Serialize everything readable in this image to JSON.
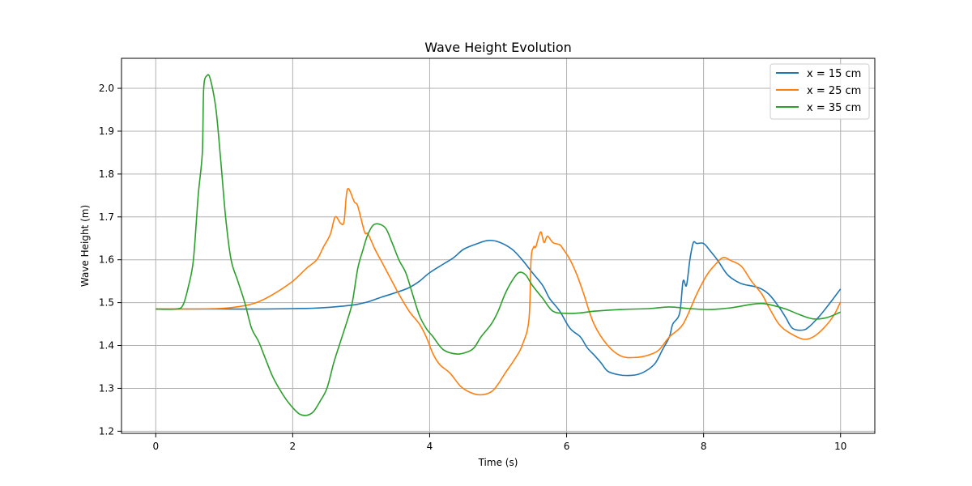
{
  "chart_data": {
    "type": "line",
    "title": "Wave Height Evolution",
    "xlabel": "Time (s)",
    "ylabel": "Wave Height (m)",
    "xlim": [
      -0.5,
      10.5
    ],
    "ylim": [
      1.195,
      2.07
    ],
    "xticks": [
      0,
      2,
      4,
      6,
      8,
      10
    ],
    "yticks": [
      1.2,
      1.3,
      1.4,
      1.5,
      1.6,
      1.7,
      1.8,
      1.9,
      2.0
    ],
    "xtick_labels": [
      "0",
      "2",
      "4",
      "6",
      "8",
      "10"
    ],
    "ytick_labels": [
      "1.2",
      "1.3",
      "1.4",
      "1.5",
      "1.6",
      "1.7",
      "1.8",
      "1.9",
      "2.0"
    ],
    "grid": true,
    "legend_position": "top-right",
    "series": [
      {
        "name": "x = 15 cm",
        "color": "#1f77b4",
        "points": [
          [
            0,
            1.485
          ],
          [
            0.5,
            1.485
          ],
          [
            1,
            1.485
          ],
          [
            1.5,
            1.485
          ],
          [
            2,
            1.486
          ],
          [
            2.3,
            1.487
          ],
          [
            2.6,
            1.49
          ],
          [
            2.9,
            1.495
          ],
          [
            3.1,
            1.502
          ],
          [
            3.3,
            1.513
          ],
          [
            3.5,
            1.523
          ],
          [
            3.7,
            1.535
          ],
          [
            3.85,
            1.55
          ],
          [
            4.0,
            1.57
          ],
          [
            4.2,
            1.59
          ],
          [
            4.35,
            1.605
          ],
          [
            4.5,
            1.625
          ],
          [
            4.7,
            1.638
          ],
          [
            4.85,
            1.645
          ],
          [
            5.0,
            1.642
          ],
          [
            5.2,
            1.625
          ],
          [
            5.35,
            1.6
          ],
          [
            5.5,
            1.57
          ],
          [
            5.65,
            1.54
          ],
          [
            5.75,
            1.51
          ],
          [
            5.9,
            1.48
          ],
          [
            6.05,
            1.44
          ],
          [
            6.2,
            1.42
          ],
          [
            6.3,
            1.395
          ],
          [
            6.4,
            1.378
          ],
          [
            6.5,
            1.36
          ],
          [
            6.6,
            1.34
          ],
          [
            6.75,
            1.332
          ],
          [
            6.9,
            1.33
          ],
          [
            7.05,
            1.333
          ],
          [
            7.2,
            1.345
          ],
          [
            7.3,
            1.36
          ],
          [
            7.4,
            1.39
          ],
          [
            7.5,
            1.42
          ],
          [
            7.55,
            1.45
          ],
          [
            7.65,
            1.475
          ],
          [
            7.7,
            1.55
          ],
          [
            7.75,
            1.54
          ],
          [
            7.8,
            1.6
          ],
          [
            7.85,
            1.64
          ],
          [
            7.9,
            1.638
          ],
          [
            8.0,
            1.638
          ],
          [
            8.1,
            1.62
          ],
          [
            8.2,
            1.6
          ],
          [
            8.35,
            1.565
          ],
          [
            8.5,
            1.548
          ],
          [
            8.6,
            1.542
          ],
          [
            8.8,
            1.535
          ],
          [
            8.95,
            1.52
          ],
          [
            9.1,
            1.49
          ],
          [
            9.2,
            1.465
          ],
          [
            9.3,
            1.44
          ],
          [
            9.45,
            1.436
          ],
          [
            9.55,
            1.445
          ],
          [
            9.7,
            1.47
          ],
          [
            9.85,
            1.5
          ],
          [
            10.0,
            1.532
          ]
        ]
      },
      {
        "name": "x = 25 cm",
        "color": "#ff7f0e",
        "points": [
          [
            0,
            1.485
          ],
          [
            0.5,
            1.485
          ],
          [
            1,
            1.487
          ],
          [
            1.3,
            1.493
          ],
          [
            1.5,
            1.502
          ],
          [
            1.7,
            1.518
          ],
          [
            2.0,
            1.55
          ],
          [
            2.2,
            1.58
          ],
          [
            2.35,
            1.6
          ],
          [
            2.45,
            1.63
          ],
          [
            2.55,
            1.66
          ],
          [
            2.62,
            1.7
          ],
          [
            2.7,
            1.685
          ],
          [
            2.75,
            1.69
          ],
          [
            2.8,
            1.765
          ],
          [
            2.9,
            1.735
          ],
          [
            2.95,
            1.725
          ],
          [
            3.05,
            1.665
          ],
          [
            3.1,
            1.66
          ],
          [
            3.2,
            1.625
          ],
          [
            3.3,
            1.595
          ],
          [
            3.45,
            1.55
          ],
          [
            3.55,
            1.52
          ],
          [
            3.7,
            1.48
          ],
          [
            3.85,
            1.45
          ],
          [
            3.95,
            1.42
          ],
          [
            4.05,
            1.38
          ],
          [
            4.15,
            1.355
          ],
          [
            4.3,
            1.335
          ],
          [
            4.45,
            1.305
          ],
          [
            4.6,
            1.29
          ],
          [
            4.75,
            1.285
          ],
          [
            4.9,
            1.292
          ],
          [
            5.0,
            1.31
          ],
          [
            5.1,
            1.335
          ],
          [
            5.25,
            1.37
          ],
          [
            5.35,
            1.4
          ],
          [
            5.45,
            1.46
          ],
          [
            5.48,
            1.6
          ],
          [
            5.52,
            1.63
          ],
          [
            5.55,
            1.63
          ],
          [
            5.62,
            1.665
          ],
          [
            5.67,
            1.64
          ],
          [
            5.72,
            1.655
          ],
          [
            5.8,
            1.64
          ],
          [
            5.9,
            1.635
          ],
          [
            5.95,
            1.625
          ],
          [
            6.05,
            1.6
          ],
          [
            6.15,
            1.565
          ],
          [
            6.25,
            1.52
          ],
          [
            6.4,
            1.45
          ],
          [
            6.6,
            1.4
          ],
          [
            6.8,
            1.375
          ],
          [
            7.0,
            1.372
          ],
          [
            7.2,
            1.378
          ],
          [
            7.35,
            1.39
          ],
          [
            7.5,
            1.42
          ],
          [
            7.7,
            1.45
          ],
          [
            7.9,
            1.52
          ],
          [
            8.05,
            1.565
          ],
          [
            8.15,
            1.585
          ],
          [
            8.28,
            1.605
          ],
          [
            8.4,
            1.598
          ],
          [
            8.55,
            1.585
          ],
          [
            8.7,
            1.55
          ],
          [
            8.85,
            1.52
          ],
          [
            8.95,
            1.49
          ],
          [
            9.1,
            1.45
          ],
          [
            9.25,
            1.43
          ],
          [
            9.45,
            1.415
          ],
          [
            9.6,
            1.42
          ],
          [
            9.75,
            1.44
          ],
          [
            9.9,
            1.47
          ],
          [
            10.0,
            1.502
          ]
        ]
      },
      {
        "name": "x = 35 cm",
        "color": "#2ca02c",
        "points": [
          [
            0,
            1.485
          ],
          [
            0.3,
            1.485
          ],
          [
            0.4,
            1.495
          ],
          [
            0.48,
            1.54
          ],
          [
            0.55,
            1.6
          ],
          [
            0.62,
            1.75
          ],
          [
            0.68,
            1.85
          ],
          [
            0.7,
            2.0
          ],
          [
            0.75,
            2.03
          ],
          [
            0.8,
            2.02
          ],
          [
            0.88,
            1.95
          ],
          [
            0.95,
            1.83
          ],
          [
            1.02,
            1.7
          ],
          [
            1.1,
            1.6
          ],
          [
            1.2,
            1.55
          ],
          [
            1.3,
            1.5
          ],
          [
            1.4,
            1.44
          ],
          [
            1.5,
            1.41
          ],
          [
            1.6,
            1.37
          ],
          [
            1.7,
            1.33
          ],
          [
            1.8,
            1.3
          ],
          [
            1.9,
            1.275
          ],
          [
            2.0,
            1.255
          ],
          [
            2.1,
            1.24
          ],
          [
            2.2,
            1.237
          ],
          [
            2.3,
            1.245
          ],
          [
            2.4,
            1.27
          ],
          [
            2.5,
            1.3
          ],
          [
            2.6,
            1.36
          ],
          [
            2.7,
            1.41
          ],
          [
            2.8,
            1.46
          ],
          [
            2.87,
            1.5
          ],
          [
            2.95,
            1.58
          ],
          [
            3.02,
            1.62
          ],
          [
            3.1,
            1.66
          ],
          [
            3.2,
            1.683
          ],
          [
            3.35,
            1.675
          ],
          [
            3.45,
            1.64
          ],
          [
            3.55,
            1.6
          ],
          [
            3.65,
            1.57
          ],
          [
            3.75,
            1.52
          ],
          [
            3.85,
            1.47
          ],
          [
            3.95,
            1.44
          ],
          [
            4.05,
            1.42
          ],
          [
            4.2,
            1.39
          ],
          [
            4.4,
            1.38
          ],
          [
            4.55,
            1.385
          ],
          [
            4.65,
            1.395
          ],
          [
            4.75,
            1.42
          ],
          [
            4.9,
            1.45
          ],
          [
            5.0,
            1.48
          ],
          [
            5.1,
            1.52
          ],
          [
            5.2,
            1.55
          ],
          [
            5.3,
            1.57
          ],
          [
            5.4,
            1.565
          ],
          [
            5.5,
            1.54
          ],
          [
            5.65,
            1.51
          ],
          [
            5.8,
            1.48
          ],
          [
            6.0,
            1.475
          ],
          [
            6.2,
            1.476
          ],
          [
            6.4,
            1.48
          ],
          [
            6.8,
            1.484
          ],
          [
            7.2,
            1.486
          ],
          [
            7.5,
            1.49
          ],
          [
            7.8,
            1.486
          ],
          [
            8.1,
            1.484
          ],
          [
            8.4,
            1.488
          ],
          [
            8.7,
            1.496
          ],
          [
            8.85,
            1.498
          ],
          [
            9.0,
            1.494
          ],
          [
            9.2,
            1.485
          ],
          [
            9.4,
            1.472
          ],
          [
            9.6,
            1.462
          ],
          [
            9.8,
            1.465
          ],
          [
            10.0,
            1.478
          ]
        ]
      }
    ]
  }
}
